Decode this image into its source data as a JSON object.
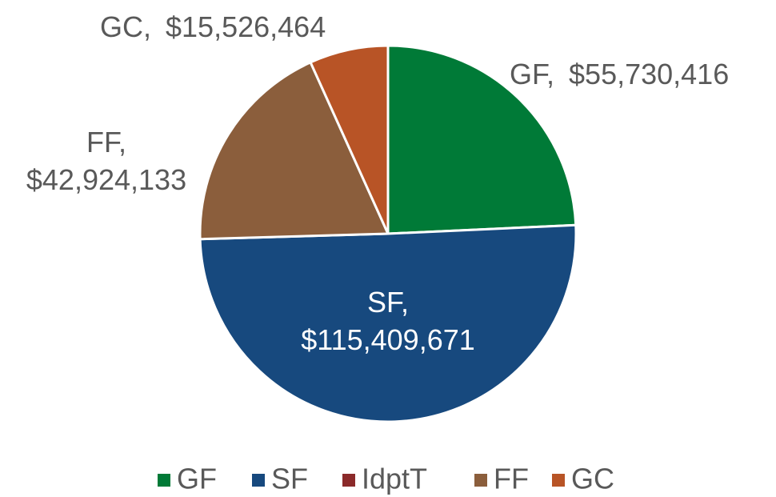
{
  "chart_data": {
    "type": "pie",
    "categories": [
      "GF",
      "SF",
      "IdptT",
      "FF",
      "GC"
    ],
    "values": [
      55730416,
      115409671,
      0,
      42924133,
      15526464
    ],
    "value_labels": [
      "$55,730,416",
      "$115,409,671",
      null,
      "$42,924,133",
      "$15,526,464"
    ],
    "label_separator": ",",
    "colors": [
      "#007a37",
      "#17497e",
      "#8b2a2a",
      "#8b5e3c",
      "#b85426"
    ],
    "legend": "bottom"
  }
}
